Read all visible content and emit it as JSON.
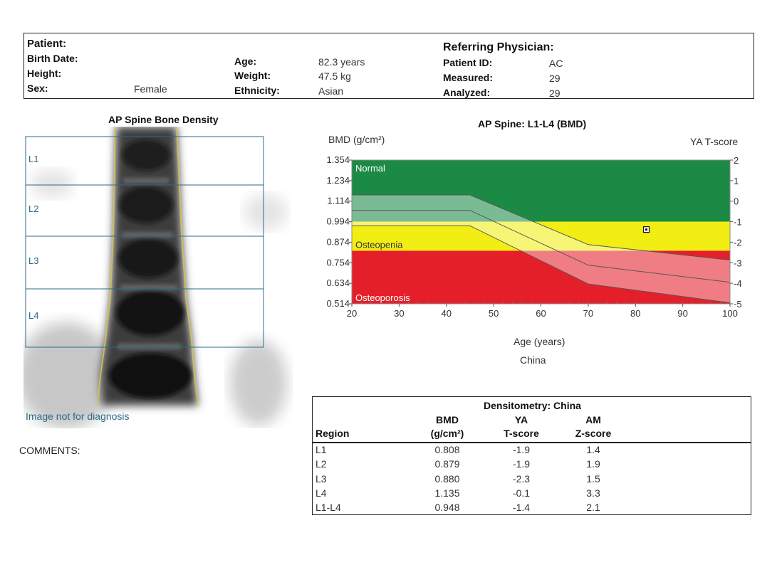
{
  "header": {
    "patient_label": "Patient:",
    "birth_date_label": "Birth Date:",
    "height_label": "Height:",
    "sex_label": "Sex:",
    "sex_value": "Female",
    "age_label": "Age:",
    "age_value": "82.3 years",
    "weight_label": "Weight:",
    "weight_value": "47.5 kg",
    "ethnicity_label": "Ethnicity:",
    "ethnicity_value": "Asian",
    "referring_label": "Referring Physician:",
    "patient_id_label": "Patient ID:",
    "patient_id_value": "AC",
    "measured_label": "Measured:",
    "measured_value": "29",
    "analyzed_label": "Analyzed:",
    "analyzed_value": "29"
  },
  "spine_image": {
    "title": "AP Spine Bone Density",
    "regions": [
      "L1",
      "L2",
      "L3",
      "L4"
    ],
    "watermark": "Image not for diagnosis"
  },
  "comments_label": "COMMENTS:",
  "chart_data": {
    "type": "area",
    "title": "AP Spine: L1-L4 (BMD)",
    "ylabel": "BMD (g/cm²)",
    "y2label": "YA T-score",
    "xlabel": "Age (years)",
    "subtitle": "China",
    "x_ticks": [
      20,
      30,
      40,
      50,
      60,
      70,
      80,
      90,
      100
    ],
    "y_ticks": [
      "1.354",
      "1.234",
      "1.114",
      "0.994",
      "0.874",
      "0.754",
      "0.634",
      "0.514"
    ],
    "y_tick_values": [
      1.354,
      1.234,
      1.114,
      0.994,
      0.874,
      0.754,
      0.634,
      0.514
    ],
    "t_ticks": [
      "2",
      "1",
      "0",
      "-1",
      "-2",
      "-3",
      "-4",
      "-5"
    ],
    "xlim": [
      20,
      100
    ],
    "ylim": [
      0.514,
      1.354
    ],
    "zones": [
      {
        "name": "Normal",
        "from": 0.994,
        "to": 1.354,
        "color": "#1b8a45"
      },
      {
        "name": "Osteopenia",
        "from": 0.824,
        "to": 0.994,
        "color": "#f2ee13"
      },
      {
        "name": "Osteoporosis",
        "from": 0.514,
        "to": 0.824,
        "color": "#e51f2a"
      }
    ],
    "reference_band": {
      "x": [
        20,
        45,
        70,
        100
      ],
      "upper": [
        1.15,
        1.15,
        0.86,
        0.77
      ],
      "middle": [
        1.06,
        1.06,
        0.74,
        0.64
      ],
      "lower": [
        0.97,
        0.97,
        0.63,
        0.52
      ]
    },
    "patient_point": {
      "age": 82.3,
      "bmd": 0.948
    }
  },
  "table": {
    "title": "Densitometry: China",
    "headers": [
      {
        "line1": "",
        "line2": "Region"
      },
      {
        "line1": "BMD",
        "line2": "(g/cm²)"
      },
      {
        "line1": "YA",
        "line2": "T-score"
      },
      {
        "line1": "AM",
        "line2": "Z-score"
      }
    ],
    "rows": [
      [
        "L1",
        "0.808",
        "-1.9",
        "1.4"
      ],
      [
        "L2",
        "0.879",
        "-1.9",
        "1.9"
      ],
      [
        "L3",
        "0.880",
        "-2.3",
        "1.5"
      ],
      [
        "L4",
        "1.135",
        "-0.1",
        "3.3"
      ],
      [
        "L1-L4",
        "0.948",
        "-1.4",
        "2.1"
      ]
    ]
  },
  "colors": {
    "normal": "#1b8a45",
    "osteopenia": "#f2ee13",
    "osteoporosis": "#e51f2a",
    "roi_line": "#2a6b86"
  }
}
